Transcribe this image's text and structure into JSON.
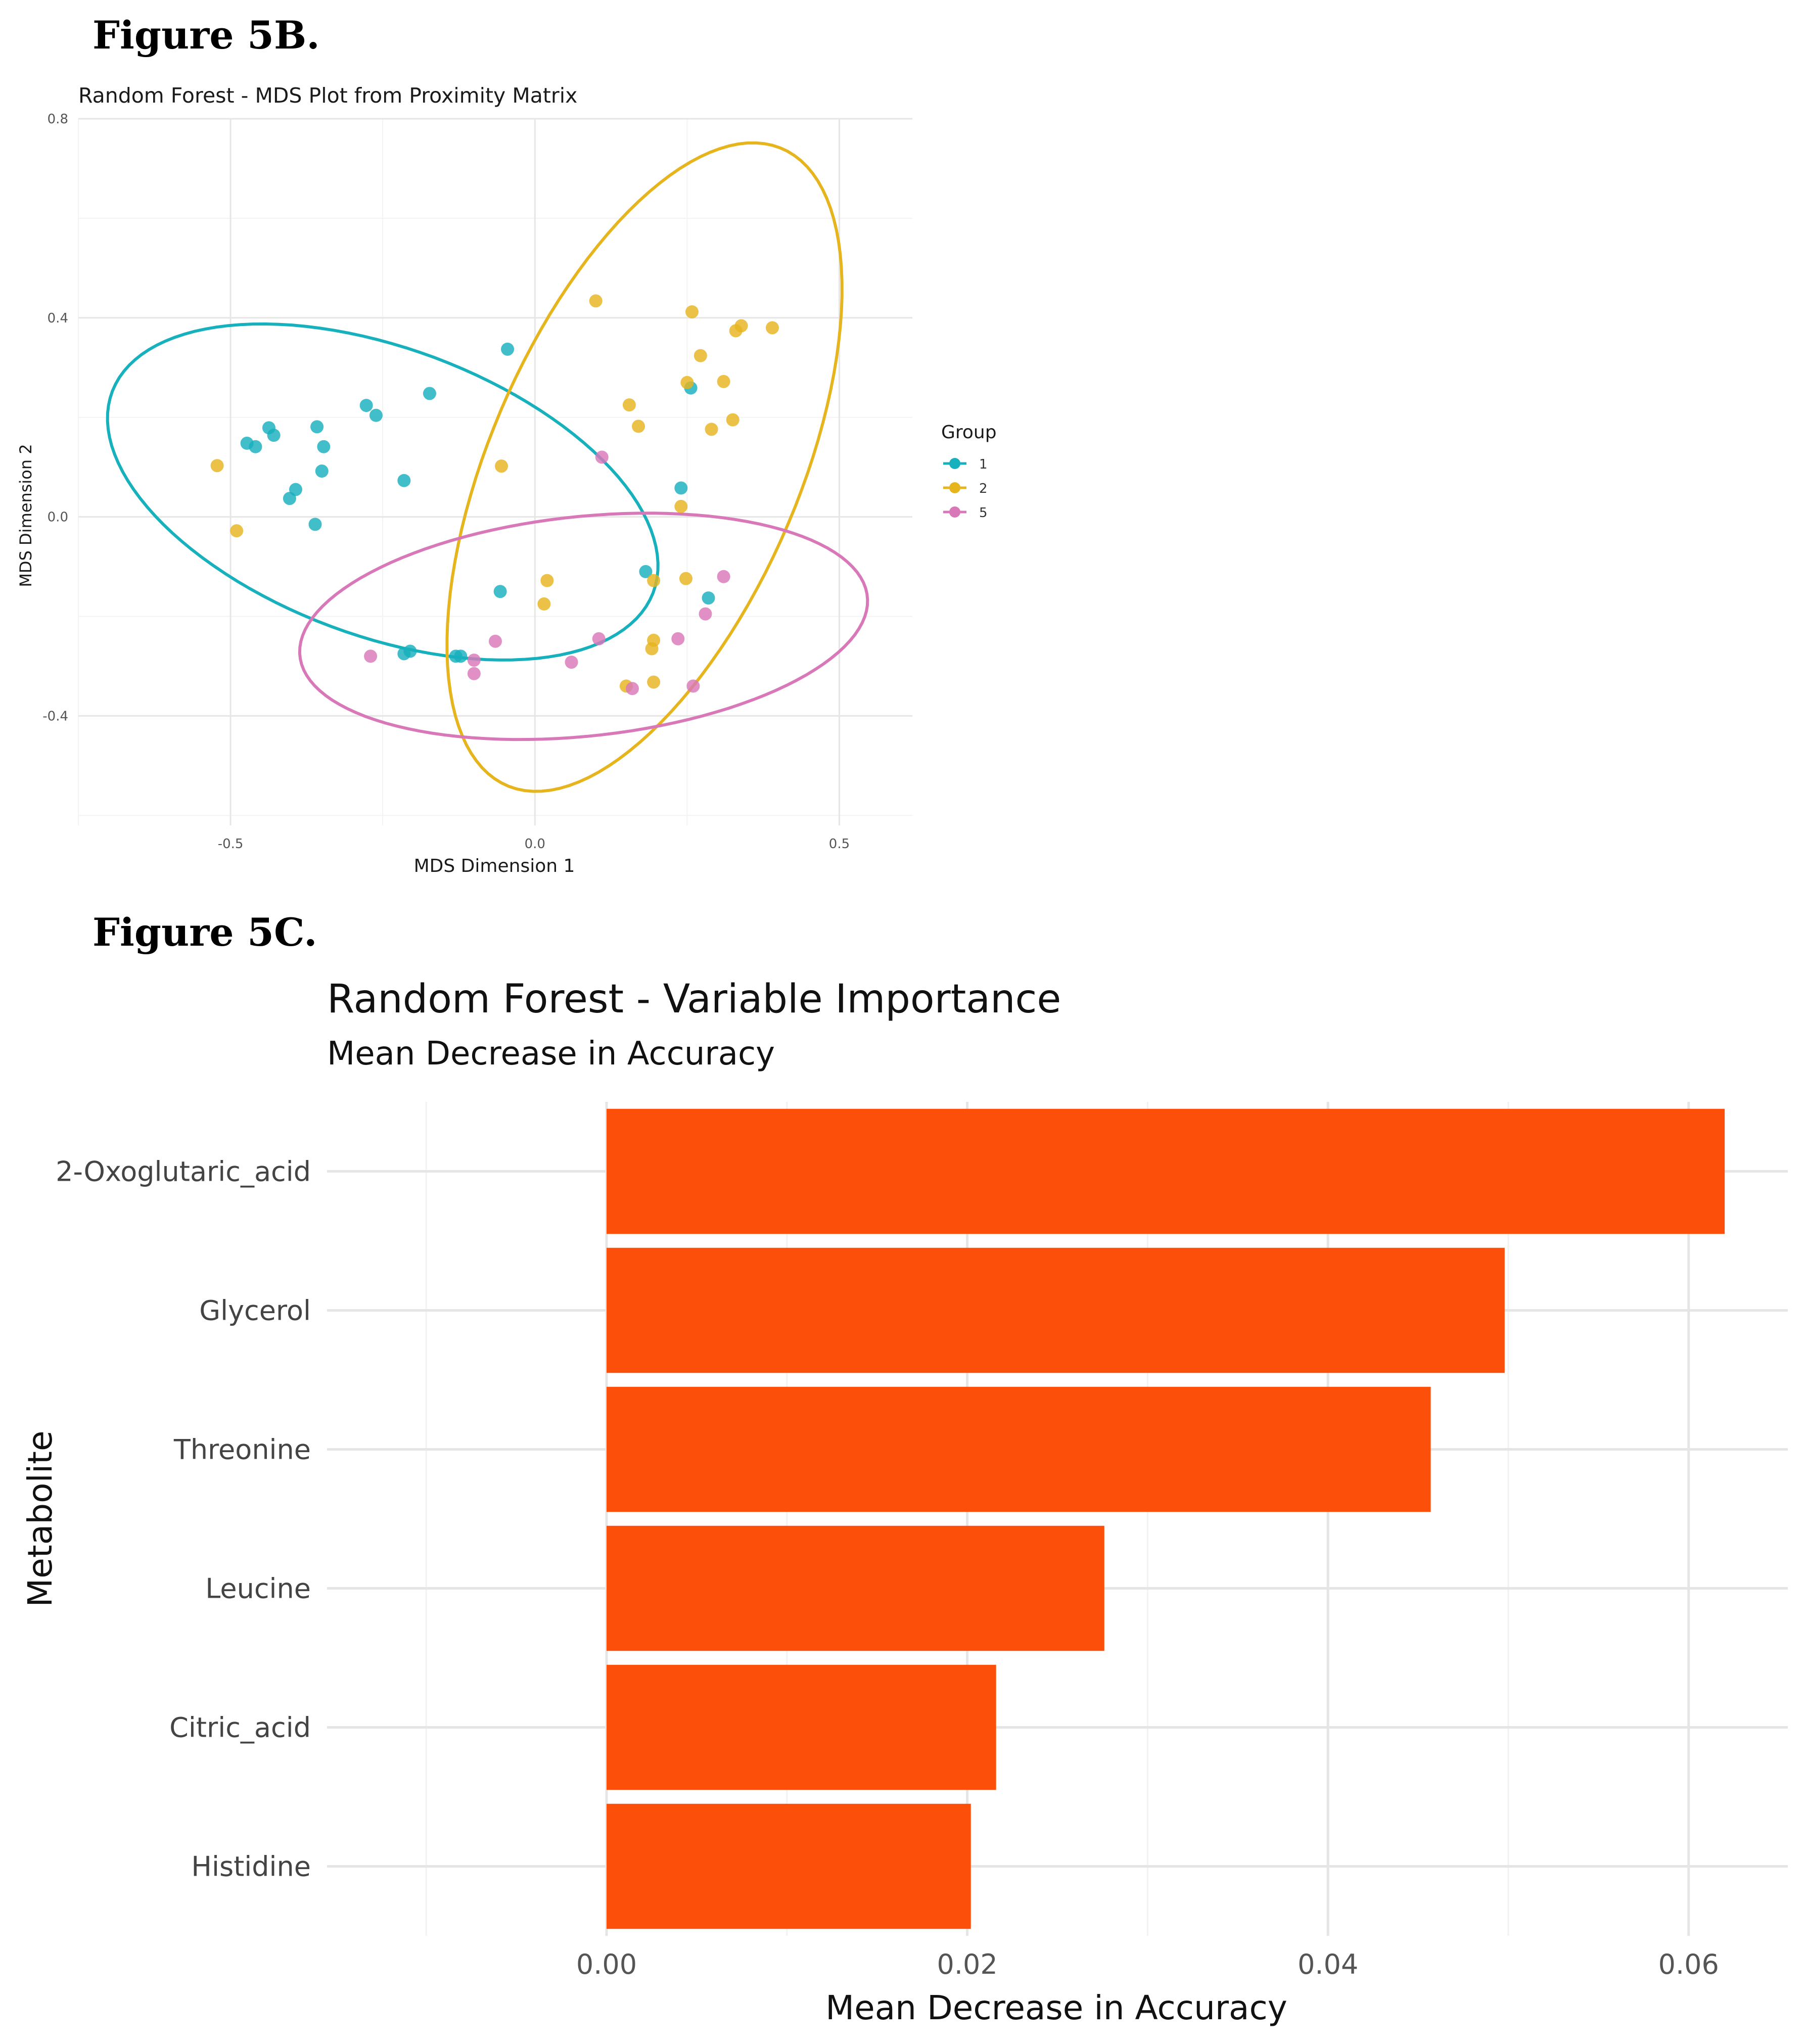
{
  "figure_b_label": "Figure 5B.",
  "figure_c_label": "Figure 5C.",
  "chart_data": [
    {
      "type": "scatter",
      "title": "Random Forest - MDS Plot from Proximity Matrix",
      "xlabel": "MDS Dimension 1",
      "ylabel": "MDS Dimension 2",
      "xlim": [
        -0.75,
        0.62
      ],
      "ylim": [
        -0.62,
        0.8
      ],
      "x_ticks": [
        -0.5,
        0.0,
        0.5
      ],
      "x_tick_labels": [
        "-0.5",
        "0.0",
        "0.5"
      ],
      "y_ticks": [
        0.8,
        0.4,
        0.0,
        -0.4
      ],
      "y_tick_labels": [
        "0.8",
        "0.4",
        "0.0",
        "-0.4"
      ],
      "grid": true,
      "legend": {
        "title": "Group",
        "placement": "right"
      },
      "series": [
        {
          "name": "1",
          "color": "#17B0BD",
          "points": [
            [
              -0.277,
              0.224
            ],
            [
              -0.261,
              0.204
            ],
            [
              -0.173,
              0.248
            ],
            [
              -0.045,
              0.337
            ],
            [
              -0.437,
              0.179
            ],
            [
              -0.429,
              0.164
            ],
            [
              -0.473,
              0.148
            ],
            [
              -0.459,
              0.141
            ],
            [
              -0.358,
              0.181
            ],
            [
              -0.347,
              0.141
            ],
            [
              -0.35,
              0.092
            ],
            [
              -0.215,
              0.073
            ],
            [
              -0.393,
              0.055
            ],
            [
              -0.403,
              0.037
            ],
            [
              -0.361,
              -0.015
            ],
            [
              0.256,
              0.259
            ],
            [
              0.24,
              0.058
            ],
            [
              -0.057,
              -0.15
            ],
            [
              0.182,
              -0.11
            ],
            [
              0.285,
              -0.163
            ],
            [
              -0.215,
              -0.275
            ],
            [
              -0.205,
              -0.27
            ],
            [
              -0.13,
              -0.28
            ],
            [
              -0.122,
              -0.28
            ]
          ],
          "ellipse": {
            "center": [
              -0.25,
              0.05
            ],
            "radii": [
              0.49,
              0.28
            ],
            "angle_deg": -28
          }
        },
        {
          "name": "2",
          "color": "#E6B51E",
          "points": [
            [
              0.1,
              0.434
            ],
            [
              0.258,
              0.412
            ],
            [
              0.339,
              0.384
            ],
            [
              0.33,
              0.374
            ],
            [
              0.39,
              0.38
            ],
            [
              0.272,
              0.324
            ],
            [
              0.25,
              0.27
            ],
            [
              0.31,
              0.272
            ],
            [
              0.155,
              0.225
            ],
            [
              0.325,
              0.195
            ],
            [
              0.29,
              0.176
            ],
            [
              0.17,
              0.182
            ],
            [
              -0.522,
              0.103
            ],
            [
              -0.055,
              0.102
            ],
            [
              0.24,
              0.021
            ],
            [
              -0.49,
              -0.028
            ],
            [
              0.02,
              -0.128
            ],
            [
              0.195,
              -0.128
            ],
            [
              0.248,
              -0.124
            ],
            [
              0.015,
              -0.175
            ],
            [
              0.195,
              -0.248
            ],
            [
              0.192,
              -0.265
            ],
            [
              0.15,
              -0.34
            ],
            [
              0.195,
              -0.332
            ]
          ],
          "ellipse": {
            "center": [
              0.18,
              0.1
            ],
            "radii": [
              0.68,
              0.26
            ],
            "angle_deg": 72
          }
        },
        {
          "name": "5",
          "color": "#D978B8",
          "points": [
            [
              0.11,
              0.12
            ],
            [
              0.31,
              -0.12
            ],
            [
              0.28,
              -0.195
            ],
            [
              0.235,
              -0.245
            ],
            [
              0.105,
              -0.245
            ],
            [
              -0.27,
              -0.28
            ],
            [
              -0.065,
              -0.25
            ],
            [
              -0.1,
              -0.288
            ],
            [
              -0.1,
              -0.315
            ],
            [
              0.06,
              -0.292
            ],
            [
              0.16,
              -0.345
            ],
            [
              0.26,
              -0.34
            ]
          ],
          "ellipse": {
            "center": [
              0.08,
              -0.22
            ],
            "radii": [
              0.47,
              0.22
            ],
            "angle_deg": 8
          }
        }
      ]
    },
    {
      "type": "bar",
      "orientation": "horizontal",
      "title": "Random Forest - Variable Importance",
      "subtitle": "Mean Decrease in Accuracy",
      "xlabel": "Mean Decrease in Accuracy",
      "ylabel": "Metabolite",
      "xlim": [
        -0.0155,
        0.0655
      ],
      "x_ticks": [
        0.0,
        0.02,
        0.04,
        0.06
      ],
      "x_tick_labels": [
        "0.00",
        "0.02",
        "0.04",
        "0.06"
      ],
      "grid": true,
      "bar_color": "#FC4F0A",
      "categories": [
        "2-Oxoglutaric_acid",
        "Glycerol",
        "Threonine",
        "Leucine",
        "Citric_acid",
        "Histidine"
      ],
      "values": [
        0.062,
        0.0498,
        0.0457,
        0.0276,
        0.0216,
        0.0202
      ]
    }
  ]
}
